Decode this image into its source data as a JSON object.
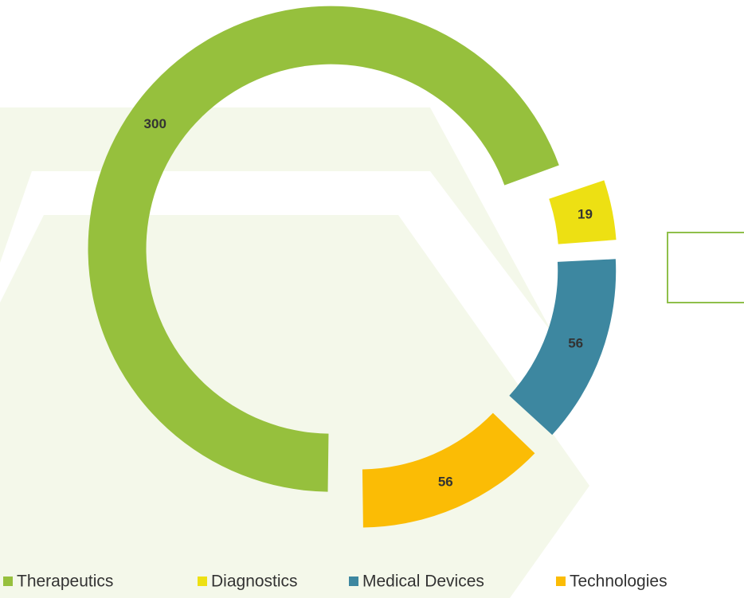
{
  "chart_data": {
    "type": "donut",
    "categories": [
      "Therapeutics",
      "Diagnostics",
      "Medical Devices",
      "Technologies"
    ],
    "values": [
      300,
      19,
      56,
      56
    ],
    "colors": [
      "#96c03d",
      "#ede013",
      "#3d87a0",
      "#fbbc05"
    ],
    "legend": "bottom"
  }
}
